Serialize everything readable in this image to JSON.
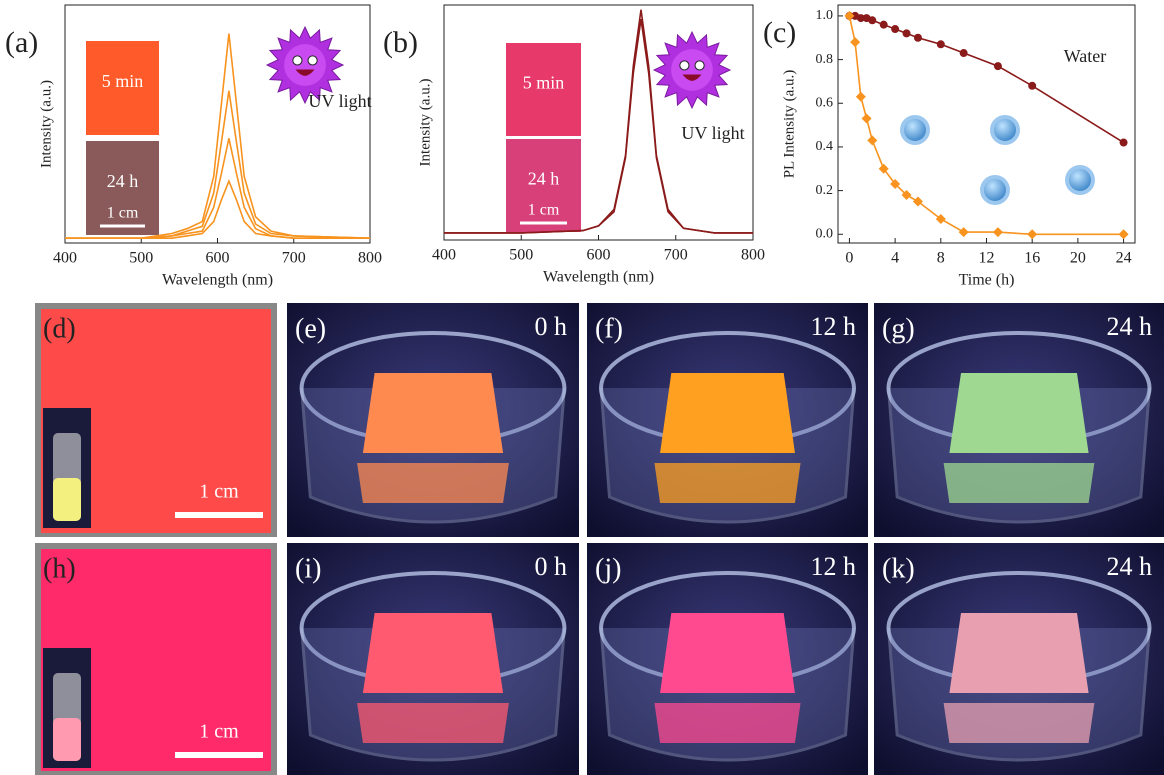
{
  "chart_data": [
    {
      "type": "line",
      "panel_label": "(a)",
      "x_label": "Wavelength (nm)",
      "y_label": "Intensity (a.u.)",
      "xlim": [
        400,
        800
      ],
      "xticks": [
        400,
        500,
        600,
        700,
        800
      ],
      "ylim": [
        0,
        1
      ],
      "x": [
        400,
        500,
        540,
        560,
        580,
        595,
        605,
        615,
        625,
        635,
        650,
        670,
        700,
        800
      ],
      "series": [
        {
          "color": "#f7931e",
          "values": [
            0.02,
            0.02,
            0.04,
            0.06,
            0.09,
            0.28,
            0.58,
            0.88,
            0.58,
            0.28,
            0.11,
            0.05,
            0.03,
            0.02
          ]
        },
        {
          "color": "#f7931e",
          "values": [
            0.02,
            0.02,
            0.03,
            0.05,
            0.07,
            0.21,
            0.42,
            0.64,
            0.42,
            0.21,
            0.08,
            0.04,
            0.03,
            0.02
          ]
        },
        {
          "color": "#f7931e",
          "values": [
            0.02,
            0.02,
            0.03,
            0.04,
            0.05,
            0.15,
            0.29,
            0.44,
            0.29,
            0.15,
            0.06,
            0.03,
            0.02,
            0.02
          ]
        },
        {
          "color": "#f7931e",
          "values": [
            0.02,
            0.02,
            0.02,
            0.03,
            0.04,
            0.09,
            0.18,
            0.26,
            0.18,
            0.09,
            0.04,
            0.03,
            0.02,
            0.02
          ]
        }
      ],
      "insets": [
        "5 min",
        "24 h"
      ],
      "scale_bar": "1 cm",
      "annotation": "UV light"
    },
    {
      "type": "line",
      "panel_label": "(b)",
      "x_label": "Wavelength (nm)",
      "y_label": "Intensity (a.u.)",
      "xlim": [
        400,
        800
      ],
      "xticks": [
        400,
        500,
        600,
        700,
        800
      ],
      "ylim": [
        0,
        1
      ],
      "x": [
        400,
        500,
        580,
        600,
        620,
        635,
        645,
        655,
        665,
        675,
        690,
        710,
        750,
        800
      ],
      "series": [
        {
          "color": "#8b1a1a",
          "values": [
            0.03,
            0.03,
            0.04,
            0.06,
            0.13,
            0.36,
            0.74,
            0.98,
            0.74,
            0.36,
            0.13,
            0.05,
            0.03,
            0.03
          ]
        },
        {
          "color": "#8b1a1a",
          "values": [
            0.03,
            0.03,
            0.04,
            0.06,
            0.12,
            0.35,
            0.71,
            0.94,
            0.71,
            0.35,
            0.12,
            0.05,
            0.03,
            0.03
          ]
        }
      ],
      "insets": [
        "5 min",
        "24 h"
      ],
      "scale_bar": "1 cm",
      "annotation": "UV light"
    },
    {
      "type": "line",
      "panel_label": "(c)",
      "x_label": "Time (h)",
      "y_label": "PL Intensity (a.u.)",
      "xlim": [
        -1,
        25
      ],
      "xticks": [
        0,
        4,
        8,
        12,
        16,
        20,
        24
      ],
      "ylim": [
        -0.04,
        1.05
      ],
      "yticks": [
        {
          "value": 0,
          "label": "0.0"
        },
        0.2,
        0.4,
        0.6,
        0.8,
        {
          "value": 1,
          "label": "1.0"
        }
      ],
      "series": [
        {
          "color": "#8b1a1a",
          "marker": "circle",
          "x": [
            0,
            0.5,
            1,
            1.5,
            2,
            3,
            4,
            5,
            6,
            8,
            10,
            13,
            16,
            24
          ],
          "values": [
            1.0,
            1.0,
            0.99,
            0.99,
            0.98,
            0.96,
            0.94,
            0.92,
            0.9,
            0.87,
            0.83,
            0.77,
            0.68,
            0.42
          ]
        },
        {
          "color": "#f7931e",
          "marker": "diamond",
          "x": [
            0,
            0.5,
            1,
            1.5,
            2,
            3,
            4,
            5,
            6,
            8,
            10,
            13,
            16,
            24
          ],
          "values": [
            1.0,
            0.88,
            0.63,
            0.53,
            0.43,
            0.3,
            0.23,
            0.18,
            0.15,
            0.07,
            0.01,
            0.01,
            0.0,
            0.0
          ]
        }
      ],
      "annotation": "Water"
    }
  ],
  "photos": [
    {
      "label": "(d)",
      "scale": "1 cm"
    },
    {
      "label": "(e)",
      "time": "0 h"
    },
    {
      "label": "(f)",
      "time": "12 h"
    },
    {
      "label": "(g)",
      "time": "24 h"
    },
    {
      "label": "(h)",
      "scale": "1 cm"
    },
    {
      "label": "(i)",
      "time": "0 h"
    },
    {
      "label": "(j)",
      "time": "12 h"
    },
    {
      "label": "(k)",
      "time": "24 h"
    }
  ]
}
